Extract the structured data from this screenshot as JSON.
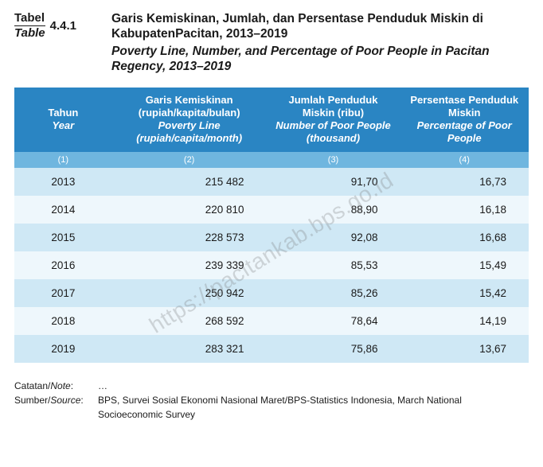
{
  "label": {
    "top": "Tabel",
    "bottom": "Table",
    "number": "4.4.1"
  },
  "title": {
    "id": "Garis Kemiskinan, Jumlah, dan Persentase Penduduk Miskin di KabupatenPacitan, 2013–2019",
    "en": "Poverty Line, Number, and Percentage of Poor People in Pacitan Regency, 2013–2019"
  },
  "columns": [
    {
      "id": "Tahun",
      "en": "Year",
      "sub": "(1)",
      "width": "19%"
    },
    {
      "id": "Garis Kemiskinan (rupiah/kapita/bulan)",
      "en": "Poverty Line (rupiah/capita/month)",
      "sub": "(2)",
      "width": "30%"
    },
    {
      "id": "Jumlah Penduduk Miskin (ribu)",
      "en": "Number of Poor People (thousand)",
      "sub": "(3)",
      "width": "26%"
    },
    {
      "id": "Persentase Penduduk Miskin",
      "en": "Percentage of Poor People",
      "sub": "(4)",
      "width": "25%"
    }
  ],
  "rows": [
    [
      "2013",
      "215 482",
      "91,70",
      "16,73"
    ],
    [
      "2014",
      "220 810",
      "88,90",
      "16,18"
    ],
    [
      "2015",
      "228 573",
      "92,08",
      "16,68"
    ],
    [
      "2016",
      "239 339",
      "85,53",
      "15,49"
    ],
    [
      "2017",
      "250 942",
      "85,26",
      "15,42"
    ],
    [
      "2018",
      "268 592",
      "78,64",
      "14,19"
    ],
    [
      "2019",
      "283 321",
      "75,86",
      "13,67"
    ]
  ],
  "footer": {
    "note_label": "Catatan/",
    "note_label_it": "Note",
    "note_value": "…",
    "source_label": "Sumber/",
    "source_label_it": "Source",
    "source_value": "BPS, Survei Sosial Ekonomi Nasional Maret/BPS-Statistics Indonesia, March National Socioeconomic Survey"
  },
  "watermark": "https://pacitankab.bps.go.id",
  "colors": {
    "header_bg": "#2a85c3",
    "subheader_bg": "#6fb6df",
    "row_odd": "#cfe8f5",
    "row_even": "#eef7fc",
    "text": "#1a1a1a",
    "white": "#ffffff"
  }
}
